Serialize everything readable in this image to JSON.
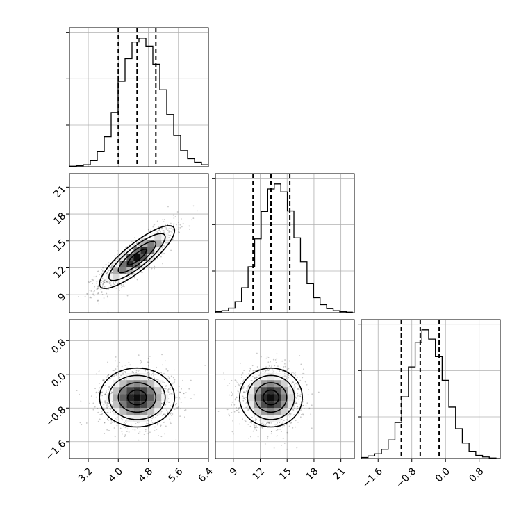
{
  "chart_data": {
    "type": "corner",
    "grid": true,
    "parameters": [
      {
        "range": [
          2.7,
          6.4
        ],
        "ticks": [
          3.2,
          4.0,
          4.8,
          5.6,
          6.4
        ],
        "tick_labels": [
          "3.2",
          "4.0",
          "4.8",
          "5.6",
          "6.4"
        ],
        "quantiles": [
          4.0,
          4.5,
          5.0
        ]
      },
      {
        "range": [
          7.0,
          22.5
        ],
        "ticks": [
          9,
          12,
          15,
          18,
          21
        ],
        "tick_labels": [
          "9",
          "12",
          "15",
          "18",
          "21"
        ],
        "quantiles": [
          11.2,
          13.2,
          15.3
        ]
      },
      {
        "range": [
          -2.0,
          1.3
        ],
        "ticks": [
          -1.6,
          -0.8,
          0.0,
          0.8
        ],
        "tick_labels": [
          "−1.6",
          "−0.8",
          "0.0",
          "0.8"
        ],
        "quantiles": [
          -1.05,
          -0.6,
          -0.15
        ]
      }
    ],
    "histograms": [
      {
        "edges_start": 2.7,
        "bin_width": 0.185,
        "counts": [
          1,
          2,
          4,
          12,
          30,
          60,
          108,
          170,
          215,
          248,
          256,
          240,
          204,
          153,
          104,
          62,
          32,
          16,
          9,
          4,
          2
        ]
      },
      {
        "edges_start": 7.0,
        "bin_width": 0.73,
        "counts": [
          2,
          4,
          9,
          22,
          50,
          92,
          148,
          203,
          248,
          258,
          242,
          204,
          150,
          102,
          58,
          30,
          16,
          8,
          4,
          2,
          1
        ]
      },
      {
        "edges_start": -2.0,
        "bin_width": 0.16,
        "counts": [
          2,
          5,
          9,
          18,
          36,
          70,
          120,
          178,
          225,
          250,
          232,
          198,
          152,
          100,
          58,
          30,
          14,
          6,
          3,
          1,
          0
        ]
      }
    ],
    "joint": [
      {
        "pair": [
          0,
          1
        ],
        "mean": [
          4.5,
          13.2
        ],
        "sd": [
          0.5,
          1.75
        ],
        "corr": 0.85
      },
      {
        "pair": [
          0,
          2
        ],
        "mean": [
          4.5,
          -0.55
        ],
        "sd": [
          0.5,
          0.35
        ],
        "corr": 0.0
      },
      {
        "pair": [
          1,
          2
        ],
        "mean": [
          13.2,
          -0.55
        ],
        "sd": [
          1.75,
          0.35
        ],
        "corr": 0.0
      }
    ],
    "contour_levels_sigma": [
      0.5,
      1.0,
      1.5,
      2.0
    ]
  }
}
